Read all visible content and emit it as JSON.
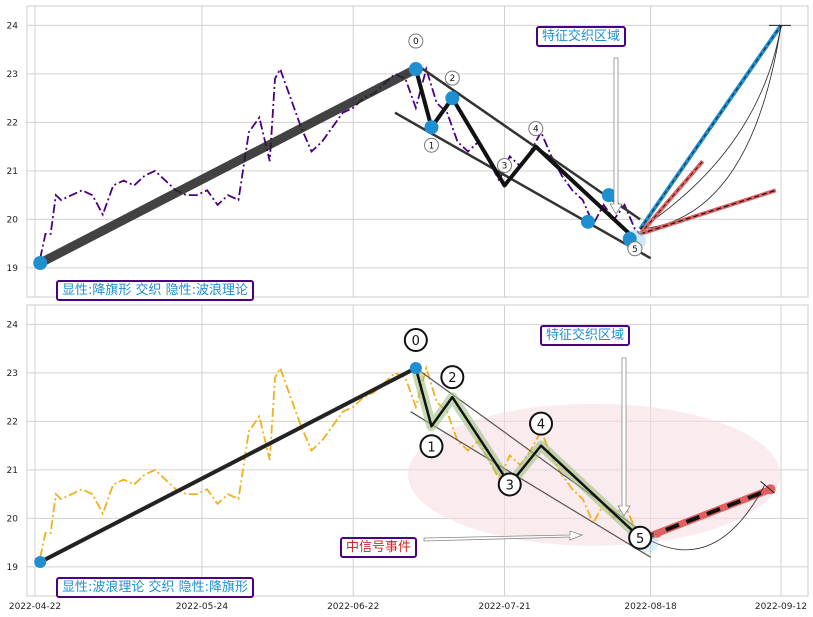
{
  "x_ticks": [
    "2022-04-22",
    "2022-05-24",
    "2022-06-22",
    "2022-07-21",
    "2022-08-18",
    "2022-09-12"
  ],
  "top_panel": {
    "annotation_region": "特征交织区域",
    "pattern_caption": "显性:降旗形 交织 隐性:波浪理论",
    "wave_labels": [
      "0",
      "1",
      "2",
      "3",
      "4",
      "5"
    ]
  },
  "bottom_panel": {
    "annotation_region": "特征交织区域",
    "signal_event": "中信号事件",
    "pattern_caption": "显性:波浪理论 交织 隐性:降旗形",
    "wave_labels": [
      "0",
      "1",
      "2",
      "3",
      "4",
      "5"
    ]
  },
  "colors": {
    "top_price_line": "#4b0082",
    "bottom_price_line": "#f0b020",
    "pivot_marker": "#1f8fd0",
    "projection_red": "#e06060",
    "projection_blue": "#1f8fd0",
    "zone_pink": "#f6dde2"
  },
  "chart_data": [
    {
      "panel": "top",
      "type": "line",
      "x_axis": "date",
      "ylim": [
        18.4,
        24.4
      ],
      "y_ticks": [
        19,
        20,
        21,
        22,
        23,
        24
      ],
      "grid": true,
      "price_series": {
        "x": [
          "2022-04-23",
          "2022-04-24",
          "2022-04-25",
          "2022-04-26",
          "2022-04-27",
          "2022-04-29",
          "2022-05-01",
          "2022-05-03",
          "2022-05-05",
          "2022-05-07",
          "2022-05-09",
          "2022-05-11",
          "2022-05-13",
          "2022-05-15",
          "2022-05-17",
          "2022-05-19",
          "2022-05-21",
          "2022-05-23",
          "2022-05-25",
          "2022-05-27",
          "2022-05-29",
          "2022-05-31",
          "2022-06-02",
          "2022-06-04",
          "2022-06-06",
          "2022-06-07",
          "2022-06-08",
          "2022-06-10",
          "2022-06-12",
          "2022-06-14",
          "2022-06-16",
          "2022-06-18",
          "2022-06-20",
          "2022-06-22",
          "2022-06-24",
          "2022-06-26",
          "2022-06-28",
          "2022-06-30",
          "2022-07-02",
          "2022-07-04",
          "2022-07-06",
          "2022-07-08",
          "2022-07-10",
          "2022-07-12",
          "2022-07-14",
          "2022-07-16",
          "2022-07-18",
          "2022-07-20",
          "2022-07-22",
          "2022-07-24",
          "2022-07-26",
          "2022-07-28",
          "2022-07-30",
          "2022-08-01",
          "2022-08-03",
          "2022-08-05",
          "2022-08-07",
          "2022-08-09",
          "2022-08-11",
          "2022-08-13",
          "2022-08-15",
          "2022-08-16"
        ],
        "y": [
          19.2,
          19.7,
          19.7,
          20.5,
          20.4,
          20.5,
          20.6,
          20.5,
          20.1,
          20.7,
          20.8,
          20.7,
          20.9,
          21.0,
          20.8,
          20.6,
          20.5,
          20.5,
          20.6,
          20.3,
          20.5,
          20.4,
          21.8,
          22.1,
          21.2,
          22.9,
          23.1,
          22.5,
          21.9,
          21.4,
          21.6,
          21.9,
          22.2,
          22.3,
          22.5,
          22.6,
          22.8,
          23.0,
          22.9,
          22.3,
          23.1,
          22.4,
          22.2,
          21.6,
          21.4,
          21.6,
          21.2,
          20.8,
          21.3,
          21.1,
          21.4,
          21.8,
          21.3,
          20.9,
          20.6,
          20.4,
          19.9,
          20.3,
          20.0,
          20.3,
          19.8,
          19.7
        ]
      },
      "wave_pivots": {
        "labels": [
          "0",
          "1",
          "2",
          "3",
          "4",
          "5"
        ],
        "x": [
          "2022-07-04",
          "2022-07-07",
          "2022-07-11",
          "2022-07-21",
          "2022-07-27",
          "2022-08-15"
        ],
        "y": [
          23.1,
          21.9,
          22.5,
          20.7,
          21.5,
          19.6
        ]
      },
      "pivot_markers": {
        "x": [
          "2022-04-23",
          "2022-07-04",
          "2022-07-07",
          "2022-07-11",
          "2022-08-06",
          "2022-08-10",
          "2022-08-14"
        ],
        "y": [
          19.1,
          23.1,
          21.9,
          22.5,
          19.95,
          20.5,
          19.6
        ]
      },
      "flag_channel": {
        "upper": {
          "x": [
            "2022-07-04",
            "2022-08-16"
          ],
          "y": [
            23.2,
            20.0
          ]
        },
        "lower": {
          "x": [
            "2022-06-30",
            "2022-08-18"
          ],
          "y": [
            22.2,
            19.2
          ]
        }
      },
      "projections": [
        {
          "color": "blue",
          "x": [
            "2022-08-16",
            "2022-09-12"
          ],
          "y": [
            19.8,
            24.0
          ]
        },
        {
          "color": "red",
          "x": [
            "2022-08-16",
            "2022-08-28"
          ],
          "y": [
            19.7,
            21.2
          ]
        },
        {
          "color": "red-dashed",
          "x": [
            "2022-08-16",
            "2022-09-11"
          ],
          "y": [
            19.7,
            20.6
          ]
        }
      ]
    },
    {
      "panel": "bottom",
      "type": "line",
      "x_axis": "date",
      "ylim": [
        18.4,
        24.4
      ],
      "y_ticks": [
        19,
        20,
        21,
        22,
        23,
        24
      ],
      "grid": true,
      "price_series": {
        "x": [
          "2022-04-23",
          "2022-04-24",
          "2022-04-25",
          "2022-04-26",
          "2022-04-27",
          "2022-04-29",
          "2022-05-01",
          "2022-05-03",
          "2022-05-05",
          "2022-05-07",
          "2022-05-09",
          "2022-05-11",
          "2022-05-13",
          "2022-05-15",
          "2022-05-17",
          "2022-05-19",
          "2022-05-21",
          "2022-05-23",
          "2022-05-25",
          "2022-05-27",
          "2022-05-29",
          "2022-05-31",
          "2022-06-02",
          "2022-06-04",
          "2022-06-06",
          "2022-06-07",
          "2022-06-08",
          "2022-06-10",
          "2022-06-12",
          "2022-06-14",
          "2022-06-16",
          "2022-06-18",
          "2022-06-20",
          "2022-06-22",
          "2022-06-24",
          "2022-06-26",
          "2022-06-28",
          "2022-06-30",
          "2022-07-02",
          "2022-07-04",
          "2022-07-06",
          "2022-07-08",
          "2022-07-10",
          "2022-07-12",
          "2022-07-14",
          "2022-07-16",
          "2022-07-18",
          "2022-07-20",
          "2022-07-22",
          "2022-07-24",
          "2022-07-26",
          "2022-07-28",
          "2022-07-30",
          "2022-08-01",
          "2022-08-03",
          "2022-08-05",
          "2022-08-07",
          "2022-08-09",
          "2022-08-11",
          "2022-08-13",
          "2022-08-15",
          "2022-08-16"
        ],
        "y": [
          19.2,
          19.7,
          19.7,
          20.5,
          20.4,
          20.5,
          20.6,
          20.5,
          20.1,
          20.7,
          20.8,
          20.7,
          20.9,
          21.0,
          20.8,
          20.6,
          20.5,
          20.5,
          20.6,
          20.3,
          20.5,
          20.4,
          21.8,
          22.1,
          21.2,
          22.9,
          23.1,
          22.5,
          21.9,
          21.4,
          21.6,
          21.9,
          22.2,
          22.3,
          22.5,
          22.6,
          22.8,
          23.0,
          22.9,
          22.3,
          23.1,
          22.4,
          22.2,
          21.6,
          21.4,
          21.6,
          21.2,
          20.8,
          21.3,
          21.1,
          21.4,
          21.8,
          21.3,
          20.9,
          20.6,
          20.4,
          19.9,
          20.3,
          20.0,
          20.3,
          19.8,
          19.7
        ]
      },
      "wave_pivots": {
        "labels": [
          "0",
          "1",
          "2",
          "3",
          "4",
          "5"
        ],
        "x": [
          "2022-07-04",
          "2022-07-07",
          "2022-07-11",
          "2022-07-22",
          "2022-07-28",
          "2022-08-16"
        ],
        "y": [
          23.1,
          21.9,
          22.5,
          20.7,
          21.5,
          19.6
        ]
      },
      "pivot_markers": {
        "x": [
          "2022-04-23",
          "2022-07-04"
        ],
        "y": [
          19.1,
          23.1
        ]
      },
      "flag_channel": {
        "upper": {
          "x": [
            "2022-07-04",
            "2022-08-18"
          ],
          "y": [
            23.1,
            19.6
          ]
        },
        "lower": {
          "x": [
            "2022-07-03",
            "2022-08-18"
          ],
          "y": [
            22.2,
            19.2
          ]
        }
      },
      "projections": [
        {
          "color": "red-dashed",
          "x": [
            "2022-08-17",
            "2022-09-10"
          ],
          "y": [
            19.6,
            20.6
          ]
        }
      ]
    }
  ]
}
